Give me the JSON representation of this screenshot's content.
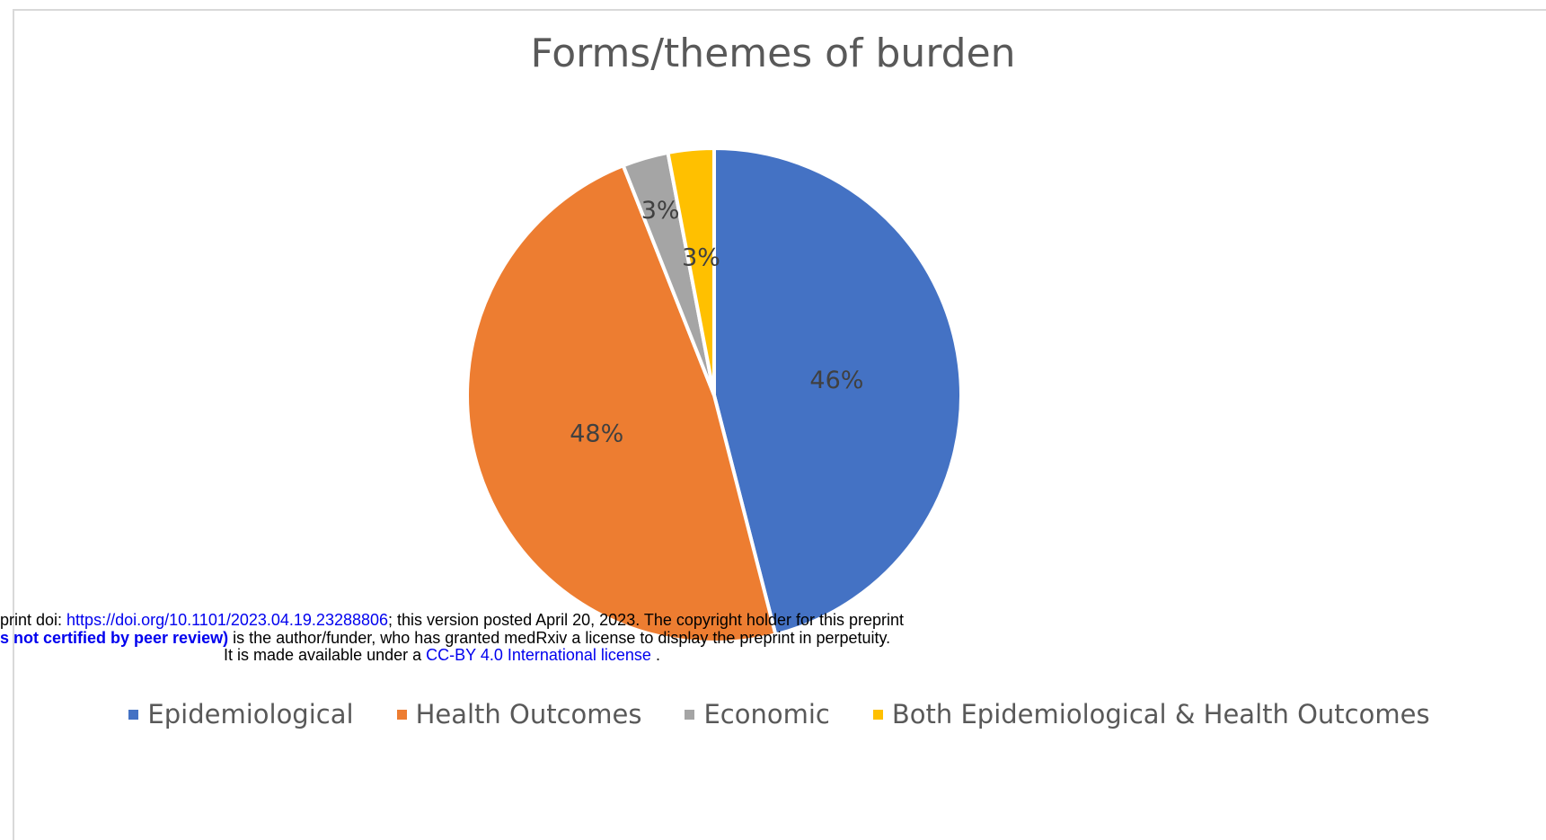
{
  "chart_data": {
    "type": "pie",
    "title": "Forms/themes  of burden",
    "categories": [
      "Epidemiological",
      "Health Outcomes",
      "Economic",
      "Both Epidemiological & Health Outcomes"
    ],
    "values": [
      46,
      48,
      3,
      3
    ],
    "data_labels": [
      "46%",
      "48%",
      "3%",
      "3%"
    ],
    "colors": [
      "#4472c4",
      "#ed7d31",
      "#a5a5a5",
      "#ffc000"
    ],
    "legend_placement": "bottom"
  },
  "watermark": {
    "line1_prefix": "print doi: ",
    "line1_link": "https://doi.org/10.1101/2023.04.19.23288806",
    "line1_suffix": "; this version posted April 20, 2023. The copyright holder for this preprint",
    "line2_bold": "s not certified by peer review)",
    "line2_suffix": " is the author/funder, who has granted medRxiv a license to display the preprint in perpetuity.",
    "line3_prefix": "It is made available under a ",
    "line3_link": "CC-BY 4.0 International license",
    "line3_suffix": " ."
  }
}
